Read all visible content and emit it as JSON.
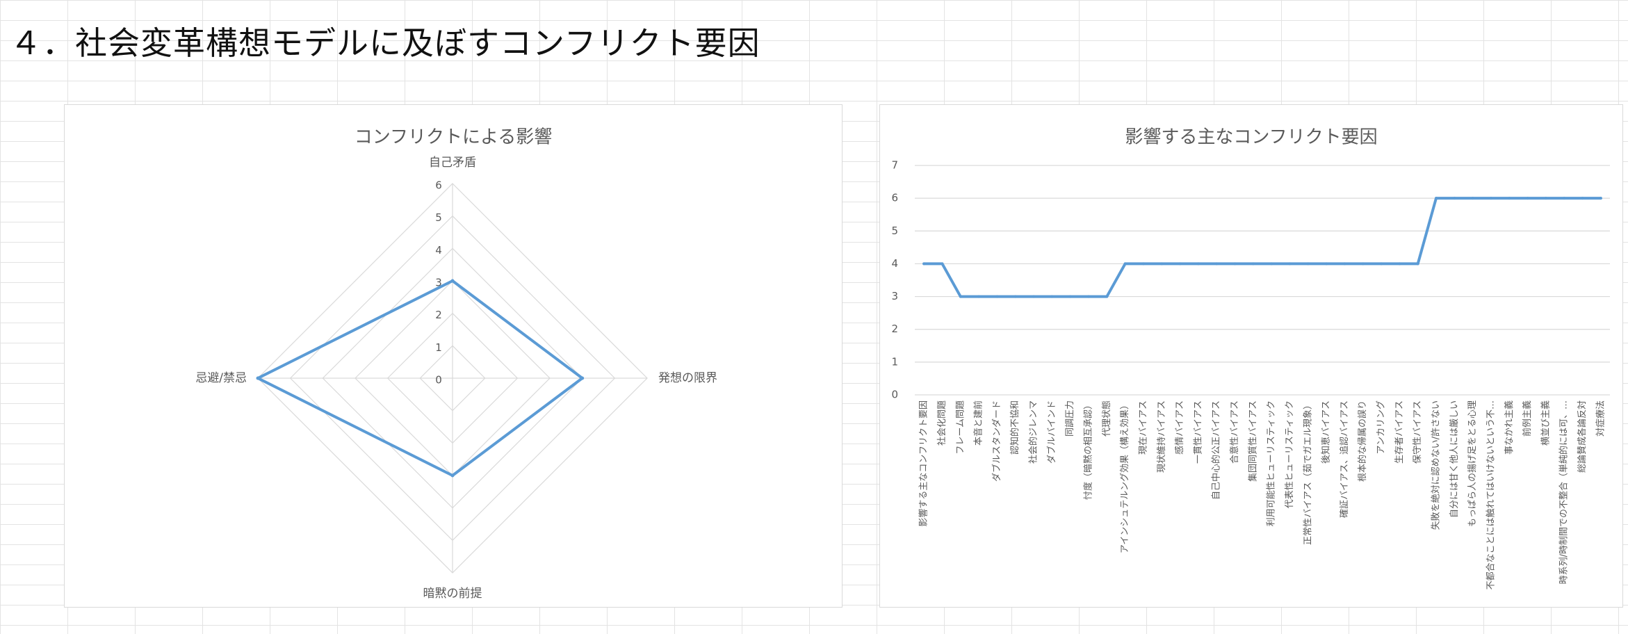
{
  "page": {
    "title": "４．社会変革構想モデルに及ぼすコンフリクト要因"
  },
  "chart_data": [
    {
      "type": "radar",
      "title": "コンフリクトによる影響",
      "axes": [
        "自己矛盾",
        "発想の限界",
        "暗黙の前提",
        "忌避/禁忌"
      ],
      "values": [
        3,
        4,
        3,
        6
      ],
      "rlim": [
        0,
        6
      ],
      "ticks": [
        0,
        1,
        2,
        3,
        4,
        5,
        6
      ],
      "grid": true,
      "color": "#5b9bd5"
    },
    {
      "type": "line",
      "title": "影響する主なコンフリクト要因",
      "categories": [
        "影響する主なコンフリクト要因",
        "社会化問題",
        "フレーム問題",
        "本音と建前",
        "ダブルスタンダード",
        "認知的不協和",
        "社会的ジレンマ",
        "ダブルバインド",
        "同調圧力",
        "忖度（暗黙の相互承認）",
        "代理状態",
        "アインシュテルング効果（構え効果）",
        "現在バイアス",
        "現状維持バイアス",
        "感情バイアス",
        "一貫性バイアス",
        "自己中心的公正バイアス",
        "合意性バイアス",
        "集団同質性バイアス",
        "利用可能性ヒューリスティック",
        "代表性ヒューリスティック",
        "正常性バイアス（茹でガエル現象）",
        "後知恵バイアス",
        "確証バイアス、追認バイアス",
        "根本的な帰属の誤り",
        "アンカリング",
        "生存者バイアス",
        "保守性バイアス",
        "失敗を絶対に認めない/許さない",
        "自分には甘く他人には厳しい",
        "もっぱら人の揚げ足をとる心理",
        "不都合なことには触れてはいけないという不…",
        "事なかれ主義",
        "前例主義",
        "横並び主義",
        "時系列/時制間での不整合（単純的には可、…",
        "総論賛成各論反対",
        "対症療法"
      ],
      "values": [
        4,
        4,
        3,
        3,
        3,
        3,
        3,
        3,
        3,
        3,
        3,
        4,
        4,
        4,
        4,
        4,
        4,
        4,
        4,
        4,
        4,
        4,
        4,
        4,
        4,
        4,
        4,
        4,
        6,
        6,
        6,
        6,
        6,
        6,
        6,
        6,
        6,
        6
      ],
      "ylim": [
        0,
        7
      ],
      "yticks": [
        0,
        1,
        2,
        3,
        4,
        5,
        6,
        7
      ],
      "grid": true,
      "color": "#5b9bd5"
    }
  ]
}
